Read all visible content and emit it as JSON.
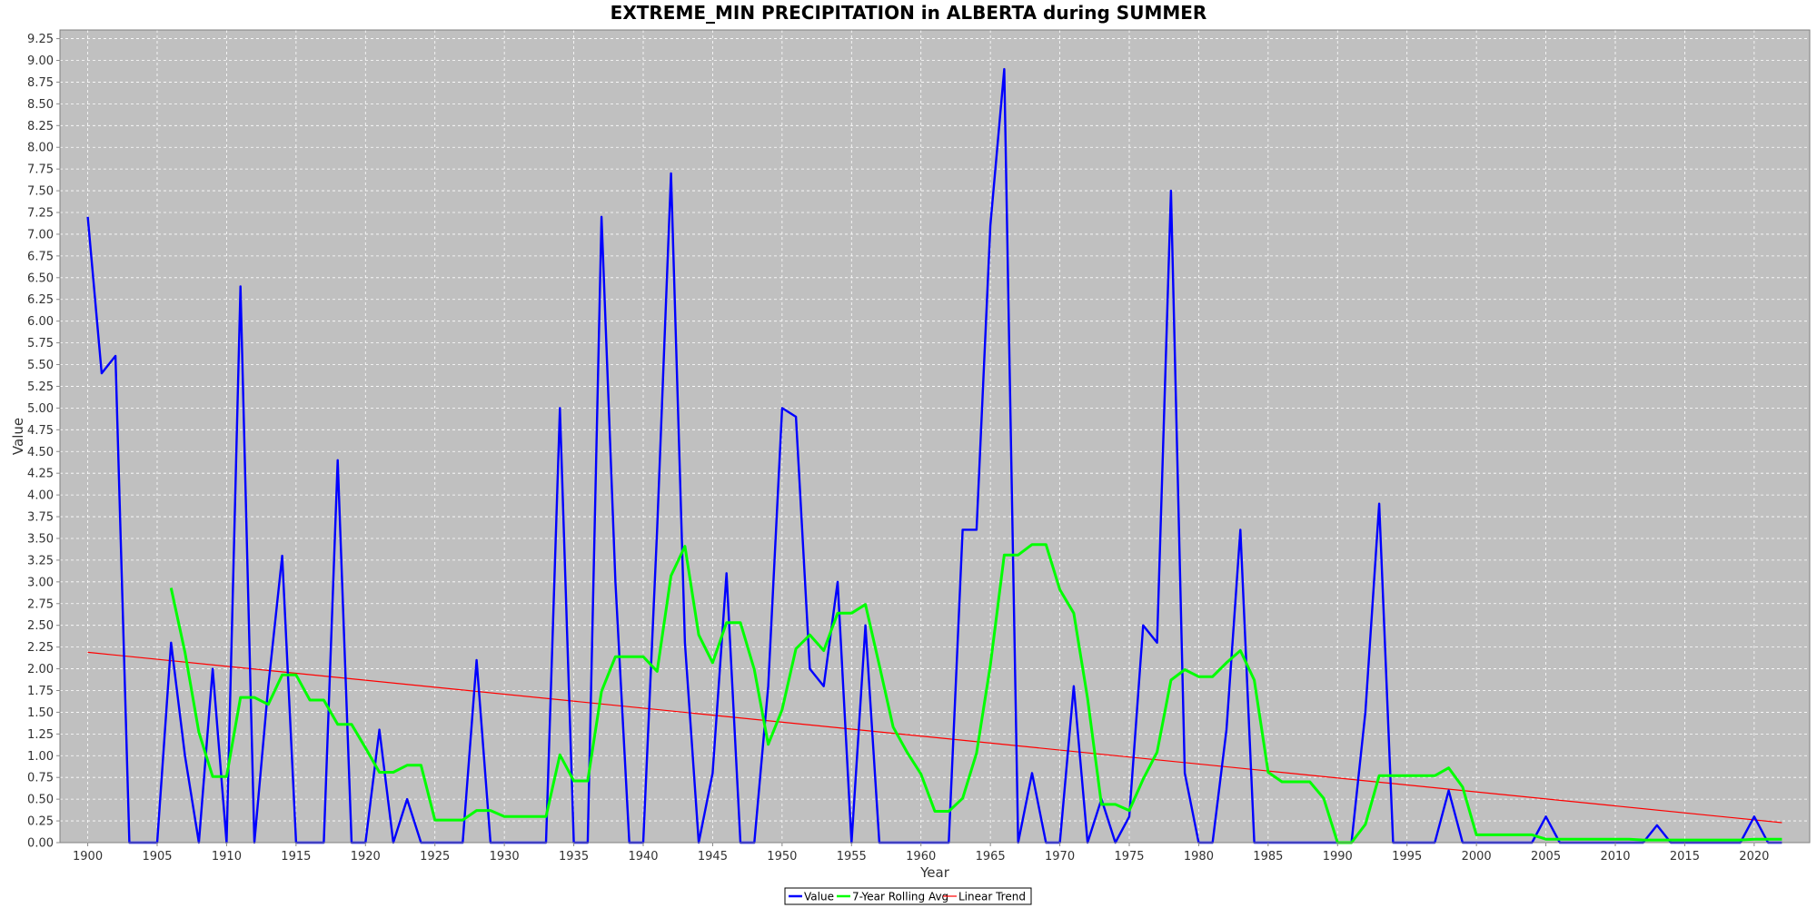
{
  "chart_data": {
    "type": "line",
    "title": "EXTREME_MIN PRECIPITATION in ALBERTA during SUMMER",
    "xlabel": "Year",
    "ylabel": "Value",
    "xlim": [
      1898,
      2024
    ],
    "ylim": [
      0,
      9.35
    ],
    "x_ticks": [
      1900,
      1905,
      1910,
      1915,
      1920,
      1925,
      1930,
      1935,
      1940,
      1945,
      1950,
      1955,
      1960,
      1965,
      1970,
      1975,
      1980,
      1985,
      1990,
      1995,
      2000,
      2005,
      2010,
      2015,
      2020
    ],
    "y_ticks": [
      "0.00",
      "0.25",
      "0.50",
      "0.75",
      "1.00",
      "1.25",
      "1.50",
      "1.75",
      "2.00",
      "2.25",
      "2.50",
      "2.75",
      "3.00",
      "3.25",
      "3.50",
      "3.75",
      "4.00",
      "4.25",
      "4.50",
      "4.75",
      "5.00",
      "5.25",
      "5.50",
      "5.75",
      "6.00",
      "6.25",
      "6.50",
      "6.75",
      "7.00",
      "7.25",
      "7.50",
      "7.75",
      "8.00",
      "8.25",
      "8.50",
      "8.75",
      "9.00",
      "9.25"
    ],
    "grid": true,
    "legend_position": "bottom-center",
    "plot_background": "#c0c0c0",
    "series": [
      {
        "name": "Value",
        "color": "#0000ff",
        "x": [
          1900,
          1901,
          1902,
          1903,
          1904,
          1905,
          1906,
          1907,
          1908,
          1909,
          1910,
          1911,
          1912,
          1913,
          1914,
          1915,
          1916,
          1917,
          1918,
          1919,
          1920,
          1921,
          1922,
          1923,
          1924,
          1925,
          1926,
          1927,
          1928,
          1929,
          1930,
          1931,
          1932,
          1933,
          1934,
          1935,
          1936,
          1937,
          1938,
          1939,
          1940,
          1941,
          1942,
          1943,
          1944,
          1945,
          1946,
          1947,
          1948,
          1949,
          1950,
          1951,
          1952,
          1953,
          1954,
          1955,
          1956,
          1957,
          1958,
          1959,
          1960,
          1961,
          1962,
          1963,
          1964,
          1965,
          1966,
          1967,
          1968,
          1969,
          1970,
          1971,
          1972,
          1973,
          1974,
          1975,
          1976,
          1977,
          1978,
          1979,
          1980,
          1981,
          1982,
          1983,
          1984,
          1985,
          1986,
          1987,
          1988,
          1989,
          1990,
          1991,
          1992,
          1993,
          1994,
          1995,
          1996,
          1997,
          1998,
          1999,
          2000,
          2001,
          2002,
          2003,
          2004,
          2005,
          2006,
          2007,
          2008,
          2009,
          2010,
          2011,
          2012,
          2013,
          2014,
          2015,
          2016,
          2017,
          2018,
          2019,
          2020,
          2021,
          2022
        ],
        "values": [
          7.2,
          5.4,
          5.6,
          0,
          0,
          0,
          2.3,
          1.0,
          0,
          2.0,
          0,
          6.4,
          0,
          1.8,
          3.3,
          0,
          0,
          0,
          4.4,
          0,
          0,
          1.3,
          0,
          0.5,
          0,
          0,
          0,
          0,
          2.1,
          0,
          0,
          0,
          0,
          0,
          5.0,
          0,
          0,
          7.2,
          3.0,
          0,
          0,
          3.6,
          7.7,
          2.3,
          0,
          0.8,
          3.1,
          0,
          0,
          1.8,
          5.0,
          4.9,
          2.0,
          1.8,
          3.0,
          0,
          2.5,
          0,
          0,
          0,
          0,
          0,
          0,
          3.6,
          3.6,
          7.1,
          8.9,
          0,
          0.8,
          0,
          0,
          1.8,
          0,
          0.5,
          0,
          0.3,
          2.5,
          2.3,
          7.5,
          0.8,
          0,
          0,
          1.3,
          3.6,
          0,
          0,
          0,
          0,
          0,
          0,
          0,
          0,
          1.5,
          3.9,
          0,
          0,
          0,
          0,
          0.6,
          0,
          0,
          0,
          0,
          0,
          0,
          0.3,
          0,
          0,
          0,
          0,
          0,
          0,
          0,
          0.2,
          0,
          0,
          0,
          0,
          0,
          0,
          0.3,
          0,
          0
        ]
      },
      {
        "name": "7-Year Rolling Avg",
        "color": "#00ff00",
        "x": [
          1906,
          1907,
          1908,
          1909,
          1910,
          1911,
          1912,
          1913,
          1914,
          1915,
          1916,
          1917,
          1918,
          1919,
          1920,
          1921,
          1922,
          1923,
          1924,
          1925,
          1926,
          1927,
          1928,
          1929,
          1930,
          1931,
          1932,
          1933,
          1934,
          1935,
          1936,
          1937,
          1938,
          1939,
          1940,
          1941,
          1942,
          1943,
          1944,
          1945,
          1946,
          1947,
          1948,
          1949,
          1950,
          1951,
          1952,
          1953,
          1954,
          1955,
          1956,
          1957,
          1958,
          1959,
          1960,
          1961,
          1962,
          1963,
          1964,
          1965,
          1966,
          1967,
          1968,
          1969,
          1970,
          1971,
          1972,
          1973,
          1974,
          1975,
          1976,
          1977,
          1978,
          1979,
          1980,
          1981,
          1982,
          1983,
          1984,
          1985,
          1986,
          1987,
          1988,
          1989,
          1990,
          1991,
          1992,
          1993,
          1994,
          1995,
          1996,
          1997,
          1998,
          1999,
          2000,
          2001,
          2002,
          2003,
          2004,
          2005,
          2006,
          2007,
          2008,
          2009,
          2010,
          2011,
          2012,
          2013,
          2014,
          2015,
          2016,
          2017,
          2018,
          2019,
          2020,
          2021,
          2022
        ],
        "values": [
          2.93,
          2.19,
          1.27,
          0.76,
          0.76,
          1.67,
          1.67,
          1.59,
          1.93,
          1.93,
          1.64,
          1.64,
          1.36,
          1.36,
          1.09,
          0.81,
          0.81,
          0.89,
          0.89,
          0.26,
          0.26,
          0.26,
          0.37,
          0.37,
          0.3,
          0.3,
          0.3,
          0.3,
          1.01,
          0.71,
          0.71,
          1.74,
          2.14,
          2.14,
          2.14,
          1.97,
          3.07,
          3.41,
          2.39,
          2.07,
          2.53,
          2.53,
          1.99,
          1.13,
          1.53,
          2.23,
          2.39,
          2.21,
          2.64,
          2.64,
          2.74,
          2.04,
          1.33,
          1.04,
          0.79,
          0.36,
          0.36,
          0.51,
          1.03,
          2.04,
          3.31,
          3.31,
          3.43,
          3.43,
          2.91,
          2.64,
          1.66,
          0.44,
          0.44,
          0.37,
          0.73,
          1.04,
          1.87,
          1.99,
          1.91,
          1.91,
          2.07,
          2.21,
          1.87,
          0.81,
          0.7,
          0.7,
          0.7,
          0.51,
          0,
          0,
          0.21,
          0.77,
          0.77,
          0.77,
          0.77,
          0.77,
          0.86,
          0.64,
          0.09,
          0.09,
          0.09,
          0.09,
          0.09,
          0.04,
          0.04,
          0.04,
          0.04,
          0.04,
          0.04,
          0.04,
          0.03,
          0.03,
          0.03,
          0.03,
          0.03,
          0.03,
          0.03,
          0.03,
          0.04,
          0.04,
          0.04
        ]
      },
      {
        "name": "Linear Trend",
        "color": "#ff0000",
        "x": [
          1900,
          2022
        ],
        "values": [
          2.19,
          0.23
        ]
      }
    ]
  }
}
